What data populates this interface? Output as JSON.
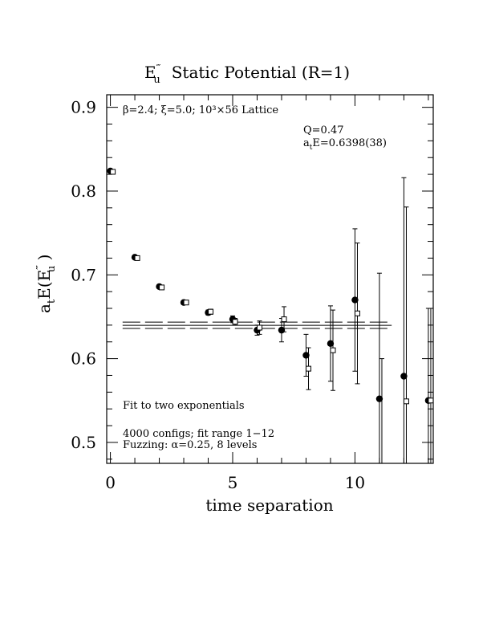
{
  "chart_data": {
    "type": "scatter",
    "title": "E″′u  Static Potential (R=1)",
    "title_parts": {
      "symbol": "E",
      "prime": "‴",
      "sub": "u",
      "text": "Static Potential (R=1)"
    },
    "xlabel": "time separation",
    "ylabel": "aₜE(E‴u )",
    "ylabel_parts": {
      "a": "a",
      "a_sub": "t",
      "mid": "E(E",
      "prime": "‴",
      "sub": "u",
      "end": " )"
    },
    "xlim": [
      -0.15,
      13.2
    ],
    "ylim": [
      0.475,
      0.915
    ],
    "x_ticks": [
      0,
      5,
      10
    ],
    "y_ticks": [
      0.5,
      0.6,
      0.7,
      0.8,
      0.9
    ],
    "x_tick_labels": [
      "0",
      "5",
      "10"
    ],
    "y_tick_labels": [
      "0.5",
      "0.6",
      "0.7",
      "0.8",
      "0.9"
    ],
    "fit": {
      "value": 0.6398,
      "error": 0.0038,
      "t_start": 0.5,
      "t_end": 11.5
    },
    "series": [
      {
        "marker": "filled-circle",
        "points": [
          {
            "x": 0,
            "y": 0.824,
            "err": 0.002
          },
          {
            "x": 1,
            "y": 0.721,
            "err": 0.002
          },
          {
            "x": 2,
            "y": 0.686,
            "err": 0.002
          },
          {
            "x": 3,
            "y": 0.667,
            "err": 0.002
          },
          {
            "x": 4,
            "y": 0.655,
            "err": 0.003
          },
          {
            "x": 5,
            "y": 0.647,
            "err": 0.004
          },
          {
            "x": 6,
            "y": 0.634,
            "err": 0.006
          },
          {
            "x": 7,
            "y": 0.634,
            "err": 0.014
          },
          {
            "x": 8,
            "y": 0.604,
            "err": 0.025
          },
          {
            "x": 9,
            "y": 0.618,
            "err": 0.045
          },
          {
            "x": 10,
            "y": 0.67,
            "err": 0.085
          },
          {
            "x": 11,
            "y": 0.552,
            "err": 0.15
          },
          {
            "x": 12,
            "y": 0.579,
            "err": 0.237
          },
          {
            "x": 13,
            "y": 0.55,
            "err": 0.11
          }
        ]
      },
      {
        "marker": "open-square",
        "points": [
          {
            "x": 0.1,
            "y": 0.823,
            "err": 0.002
          },
          {
            "x": 1.1,
            "y": 0.72,
            "err": 0.002
          },
          {
            "x": 2.1,
            "y": 0.685,
            "err": 0.002
          },
          {
            "x": 3.1,
            "y": 0.667,
            "err": 0.002
          },
          {
            "x": 4.1,
            "y": 0.656,
            "err": 0.003
          },
          {
            "x": 5.1,
            "y": 0.644,
            "err": 0.004
          },
          {
            "x": 6.1,
            "y": 0.637,
            "err": 0.008
          },
          {
            "x": 7.1,
            "y": 0.647,
            "err": 0.015
          },
          {
            "x": 8.1,
            "y": 0.588,
            "err": 0.025
          },
          {
            "x": 9.1,
            "y": 0.61,
            "err": 0.048
          },
          {
            "x": 10.1,
            "y": 0.654,
            "err": 0.084
          },
          {
            "x": 11.1,
            "y": 0.46,
            "err": 0.14
          },
          {
            "x": 12.1,
            "y": 0.549,
            "err": 0.232
          },
          {
            "x": 13.1,
            "y": 0.55,
            "err": 0.11
          }
        ]
      }
    ],
    "annotations": {
      "lattice": "β=2.4; ξ=5.0; 10³×56 Lattice",
      "q": "Q=0.47",
      "energy_prefix": "a",
      "energy_sub": "t",
      "energy_rest": "E=0.6398(38)",
      "fit_method": "Fit to two exponentials",
      "configs": "4000 configs; fit range 1−12",
      "fuzzing": "Fuzzing: α=0.25, 8 levels"
    }
  }
}
